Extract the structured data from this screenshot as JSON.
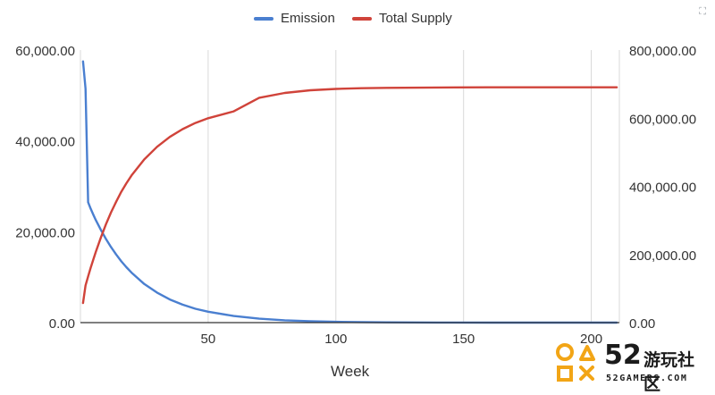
{
  "chart_data": {
    "type": "line",
    "title": "",
    "xlabel": "Week",
    "ylabel": "",
    "xlim": [
      0,
      211
    ],
    "x_ticks": [
      "50",
      "100",
      "150",
      "200"
    ],
    "y_left_lim": [
      0,
      60000
    ],
    "y_left_ticks": [
      "0.00",
      "20,000.00",
      "40,000.00",
      "60,000.00"
    ],
    "y_right_lim": [
      0,
      800000
    ],
    "y_right_ticks": [
      "0.00",
      "200,000.00",
      "400,000.00",
      "600,000.00",
      "800,000.00"
    ],
    "grid": "vertical",
    "legend_position": "top-center",
    "series": [
      {
        "name": "Emission",
        "axis": "left",
        "color": "#4a7fd0",
        "x": [
          1,
          2,
          3,
          4,
          5,
          6,
          8,
          10,
          12,
          14,
          16,
          18,
          20,
          25,
          30,
          35,
          40,
          45,
          50,
          60,
          70,
          80,
          90,
          100,
          110,
          120,
          140,
          160,
          180,
          200,
          210
        ],
        "y": [
          57500,
          51500,
          26500,
          25100,
          23800,
          22600,
          20400,
          18400,
          16600,
          15000,
          13500,
          12200,
          11000,
          8500,
          6600,
          5100,
          3950,
          3050,
          2400,
          1450,
          870,
          520,
          310,
          185,
          110,
          66,
          24,
          9,
          3,
          1,
          0
        ]
      },
      {
        "name": "Total Supply",
        "axis": "right",
        "color": "#d0433a",
        "x": [
          1,
          2,
          3,
          4,
          5,
          6,
          8,
          10,
          12,
          14,
          16,
          18,
          20,
          25,
          30,
          35,
          40,
          45,
          50,
          60,
          70,
          80,
          90,
          100,
          110,
          120,
          140,
          160,
          180,
          200,
          210
        ],
        "y": [
          57500,
          109000,
          135500,
          160600,
          184400,
          207000,
          250000,
          289000,
          324000,
          355000,
          384000,
          409000,
          432000,
          479000,
          516000,
          545000,
          568000,
          586000,
          600000,
          620000,
          660000,
          674000,
          682000,
          686000,
          688000,
          689000,
          690000,
          690500,
          690500,
          690500,
          690500
        ]
      }
    ]
  },
  "watermark": {
    "number": "52",
    "chinese": "游玩社区",
    "english": "52GAMERS.COM"
  },
  "ui": {
    "corner_icon": "expand-icon",
    "corner_glyph": "⛶"
  }
}
